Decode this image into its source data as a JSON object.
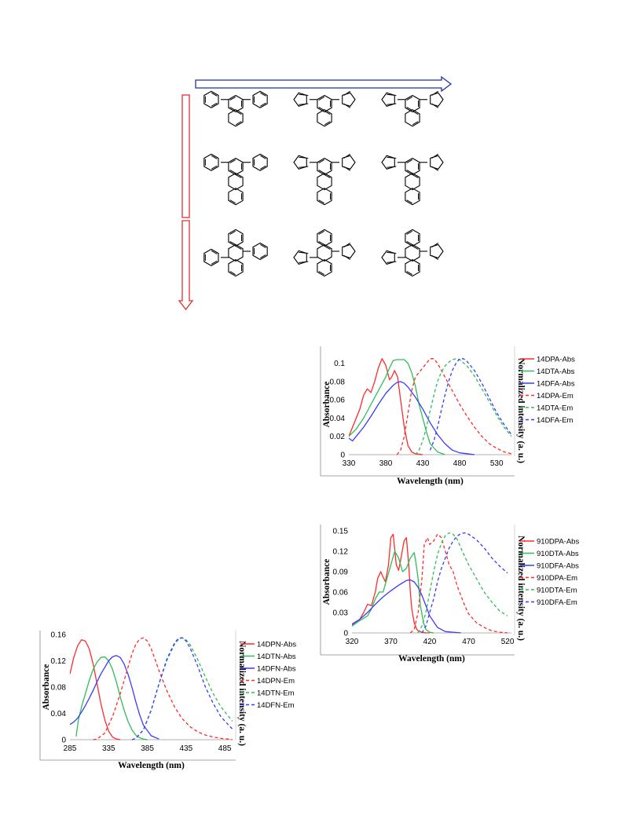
{
  "scheme": {
    "rows": [
      {
        "core": "naphthalene",
        "substituents": [
          "phenyl",
          "thienyl",
          "furyl"
        ]
      },
      {
        "core": "anthracene-1,4",
        "substituents": [
          "phenyl",
          "thienyl",
          "furyl"
        ]
      },
      {
        "core": "anthracene-9,10",
        "substituents": [
          "phenyl",
          "thienyl",
          "furyl"
        ]
      }
    ],
    "arrow_colors": {
      "horizontal": "#1f2fa8",
      "vertical": "#e03030"
    }
  },
  "colors": {
    "red": "#ff2a2a",
    "green": "#2ebd5a",
    "blue": "#3a3aff"
  },
  "chart_data": [
    {
      "id": "anthracene-14",
      "type": "line",
      "xlabel": "Wavelength (nm)",
      "ylabel": "Absorbance",
      "y2label": "Normalized intensity (a. u.)",
      "xlim": [
        330,
        550
      ],
      "ylim": [
        0,
        0.11
      ],
      "xticks": [
        330,
        380,
        430,
        480,
        530
      ],
      "yticks": [
        0,
        0.02,
        0.04,
        0.06,
        0.08,
        0.1
      ],
      "ytick_labels": [
        "0",
        "0.02",
        "0.04",
        "0.06",
        "0.08",
        "0.1"
      ],
      "legend_position": "right",
      "series": [
        {
          "name": "14DPA-Abs",
          "color": "red",
          "dash": false,
          "x": [
            330,
            335,
            340,
            345,
            350,
            355,
            360,
            365,
            370,
            375,
            380,
            385,
            388,
            392,
            396,
            400,
            405,
            410,
            415,
            420,
            430
          ],
          "y": [
            0.02,
            0.03,
            0.04,
            0.05,
            0.065,
            0.072,
            0.068,
            0.08,
            0.095,
            0.105,
            0.098,
            0.082,
            0.085,
            0.092,
            0.085,
            0.06,
            0.03,
            0.01,
            0.003,
            0.001,
            0
          ]
        },
        {
          "name": "14DTA-Abs",
          "color": "green",
          "dash": false,
          "x": [
            330,
            340,
            350,
            360,
            370,
            380,
            385,
            390,
            395,
            400,
            405,
            410,
            415,
            420,
            425,
            430,
            435,
            440,
            450,
            460
          ],
          "y": [
            0.02,
            0.028,
            0.04,
            0.055,
            0.07,
            0.085,
            0.095,
            0.103,
            0.104,
            0.104,
            0.104,
            0.1,
            0.09,
            0.075,
            0.055,
            0.04,
            0.025,
            0.012,
            0.003,
            0
          ]
        },
        {
          "name": "14DFA-Abs",
          "color": "blue",
          "dash": false,
          "x": [
            330,
            335,
            340,
            350,
            360,
            370,
            380,
            390,
            395,
            400,
            405,
            410,
            420,
            430,
            440,
            450,
            460,
            470,
            480,
            490,
            500
          ],
          "y": [
            0.018,
            0.015,
            0.02,
            0.03,
            0.042,
            0.055,
            0.067,
            0.076,
            0.079,
            0.08,
            0.078,
            0.074,
            0.063,
            0.05,
            0.035,
            0.022,
            0.012,
            0.005,
            0.002,
            0.001,
            0
          ]
        },
        {
          "name": "14DPA-Em",
          "color": "red",
          "dash": true,
          "x": [
            395,
            400,
            405,
            410,
            415,
            420,
            425,
            430,
            435,
            440,
            445,
            450,
            460,
            470,
            480,
            490,
            500,
            510,
            520,
            530,
            540,
            550
          ],
          "y": [
            0,
            0.005,
            0.02,
            0.045,
            0.07,
            0.085,
            0.09,
            0.095,
            0.1,
            0.105,
            0.105,
            0.1,
            0.085,
            0.07,
            0.055,
            0.042,
            0.03,
            0.02,
            0.012,
            0.007,
            0.003,
            0.001
          ]
        },
        {
          "name": "14DTA-Em",
          "color": "green",
          "dash": true,
          "x": [
            420,
            425,
            430,
            435,
            440,
            445,
            450,
            455,
            460,
            465,
            470,
            475,
            480,
            490,
            500,
            510,
            520,
            530,
            540,
            550
          ],
          "y": [
            0,
            0.005,
            0.015,
            0.03,
            0.048,
            0.065,
            0.08,
            0.09,
            0.097,
            0.101,
            0.104,
            0.105,
            0.104,
            0.097,
            0.086,
            0.072,
            0.058,
            0.043,
            0.03,
            0.02
          ]
        },
        {
          "name": "14DFA-Em",
          "color": "blue",
          "dash": true,
          "x": [
            440,
            445,
            450,
            455,
            460,
            465,
            470,
            475,
            480,
            485,
            490,
            500,
            510,
            520,
            530,
            540,
            550
          ],
          "y": [
            0.005,
            0.015,
            0.03,
            0.048,
            0.065,
            0.08,
            0.092,
            0.1,
            0.105,
            0.105,
            0.102,
            0.092,
            0.078,
            0.062,
            0.046,
            0.033,
            0.022
          ]
        }
      ]
    },
    {
      "id": "anthracene-910",
      "type": "line",
      "xlabel": "Wavelength (nm)",
      "ylabel": "Absorbance",
      "y2label": "Normalized intensity (a. u.)",
      "xlim": [
        320,
        525
      ],
      "ylim": [
        0,
        0.15
      ],
      "xticks": [
        320,
        370,
        420,
        470,
        520
      ],
      "yticks": [
        0,
        0.03,
        0.06,
        0.09,
        0.12,
        0.15
      ],
      "ytick_labels": [
        "0",
        "0.03",
        "0.06",
        "0.09",
        "0.12",
        "0.15"
      ],
      "legend_position": "right",
      "series": [
        {
          "name": "910DPA-Abs",
          "color": "red",
          "dash": false,
          "x": [
            320,
            330,
            335,
            340,
            345,
            350,
            353,
            357,
            360,
            363,
            367,
            370,
            373,
            377,
            380,
            383,
            387,
            390,
            393,
            395,
            397,
            400,
            403,
            405,
            410,
            415,
            420
          ],
          "y": [
            0.013,
            0.02,
            0.03,
            0.042,
            0.04,
            0.06,
            0.08,
            0.09,
            0.082,
            0.075,
            0.1,
            0.14,
            0.145,
            0.1,
            0.092,
            0.11,
            0.135,
            0.14,
            0.1,
            0.06,
            0.035,
            0.015,
            0.006,
            0.003,
            0.001,
            0,
            0
          ]
        },
        {
          "name": "910DTA-Abs",
          "color": "green",
          "dash": false,
          "x": [
            320,
            330,
            340,
            345,
            350,
            355,
            360,
            365,
            370,
            375,
            380,
            385,
            390,
            395,
            400,
            402,
            405,
            408,
            412,
            415,
            420,
            425
          ],
          "y": [
            0.01,
            0.018,
            0.025,
            0.035,
            0.05,
            0.06,
            0.06,
            0.08,
            0.1,
            0.12,
            0.11,
            0.09,
            0.095,
            0.11,
            0.118,
            0.105,
            0.08,
            0.04,
            0.015,
            0.005,
            0.001,
            0
          ]
        },
        {
          "name": "910DFA-Abs",
          "color": "blue",
          "dash": false,
          "x": [
            320,
            330,
            340,
            350,
            360,
            370,
            380,
            390,
            395,
            400,
            405,
            410,
            415,
            420,
            430,
            440,
            450,
            460
          ],
          "y": [
            0.012,
            0.02,
            0.03,
            0.042,
            0.053,
            0.062,
            0.07,
            0.077,
            0.078,
            0.075,
            0.067,
            0.055,
            0.04,
            0.025,
            0.008,
            0.002,
            0.001,
            0
          ]
        },
        {
          "name": "910DPA-Em",
          "color": "red",
          "dash": true,
          "x": [
            395,
            400,
            405,
            410,
            413,
            417,
            420,
            425,
            430,
            435,
            440,
            445,
            450,
            455,
            460,
            465,
            470,
            480,
            490,
            500,
            510,
            520
          ],
          "y": [
            0,
            0.005,
            0.03,
            0.08,
            0.13,
            0.14,
            0.13,
            0.135,
            0.145,
            0.14,
            0.12,
            0.1,
            0.09,
            0.07,
            0.055,
            0.04,
            0.028,
            0.015,
            0.008,
            0.003,
            0.001,
            0
          ]
        },
        {
          "name": "910DTA-Em",
          "color": "green",
          "dash": true,
          "x": [
            405,
            410,
            415,
            420,
            425,
            430,
            435,
            440,
            445,
            450,
            455,
            460,
            470,
            480,
            490,
            500,
            510,
            520
          ],
          "y": [
            0,
            0.01,
            0.03,
            0.06,
            0.09,
            0.115,
            0.132,
            0.143,
            0.147,
            0.145,
            0.138,
            0.125,
            0.1,
            0.08,
            0.06,
            0.045,
            0.032,
            0.025
          ]
        },
        {
          "name": "910DFA-Em",
          "color": "blue",
          "dash": true,
          "x": [
            410,
            415,
            420,
            425,
            430,
            435,
            440,
            445,
            450,
            455,
            460,
            465,
            470,
            480,
            490,
            500,
            510,
            520
          ],
          "y": [
            0,
            0.01,
            0.03,
            0.05,
            0.075,
            0.095,
            0.11,
            0.125,
            0.135,
            0.142,
            0.146,
            0.147,
            0.145,
            0.137,
            0.125,
            0.11,
            0.098,
            0.088
          ]
        }
      ]
    },
    {
      "id": "naphthalene",
      "type": "line",
      "xlabel": "Wavelength (nm)",
      "ylabel": "Absorbance",
      "y2label": "Normalized intensity (a. u.)",
      "xlim": [
        285,
        495
      ],
      "ylim": [
        0,
        0.16
      ],
      "xticks": [
        285,
        335,
        385,
        435,
        485
      ],
      "yticks": [
        0,
        0.04,
        0.08,
        0.12,
        0.16
      ],
      "ytick_labels": [
        "0",
        "0.04",
        "0.08",
        "0.12",
        "0.16"
      ],
      "legend_position": "right",
      "series": [
        {
          "name": "14DPN-Abs",
          "color": "red",
          "dash": false,
          "x": [
            285,
            290,
            295,
            300,
            305,
            310,
            315,
            320,
            325,
            330,
            335,
            340,
            345,
            350
          ],
          "y": [
            0.1,
            0.125,
            0.143,
            0.152,
            0.15,
            0.138,
            0.115,
            0.085,
            0.055,
            0.03,
            0.013,
            0.004,
            0.001,
            0
          ]
        },
        {
          "name": "14DTN-Abs",
          "color": "green",
          "dash": false,
          "x": [
            293,
            296,
            300,
            305,
            310,
            315,
            320,
            325,
            330,
            335,
            340,
            345,
            350,
            355,
            360,
            365,
            370,
            375,
            380,
            385
          ],
          "y": [
            0.005,
            0.03,
            0.05,
            0.07,
            0.09,
            0.107,
            0.118,
            0.125,
            0.126,
            0.12,
            0.107,
            0.088,
            0.065,
            0.045,
            0.028,
            0.015,
            0.007,
            0.003,
            0.001,
            0
          ]
        },
        {
          "name": "14DFN-Abs",
          "color": "blue",
          "dash": false,
          "x": [
            285,
            290,
            295,
            300,
            305,
            310,
            315,
            320,
            325,
            330,
            335,
            340,
            345,
            350,
            355,
            360,
            365,
            370,
            375,
            380,
            390,
            400
          ],
          "y": [
            0.023,
            0.027,
            0.033,
            0.042,
            0.052,
            0.063,
            0.075,
            0.088,
            0.1,
            0.11,
            0.12,
            0.126,
            0.128,
            0.125,
            0.115,
            0.1,
            0.08,
            0.058,
            0.038,
            0.022,
            0.006,
            0.001
          ]
        },
        {
          "name": "14DPN-Em",
          "color": "red",
          "dash": true,
          "x": [
            315,
            320,
            330,
            340,
            350,
            360,
            365,
            370,
            375,
            380,
            385,
            390,
            395,
            400,
            410,
            420,
            430,
            440,
            450,
            460,
            470,
            480,
            490,
            495
          ],
          "y": [
            0,
            0.001,
            0.01,
            0.035,
            0.07,
            0.11,
            0.13,
            0.145,
            0.153,
            0.155,
            0.15,
            0.138,
            0.122,
            0.105,
            0.075,
            0.05,
            0.032,
            0.02,
            0.012,
            0.007,
            0.004,
            0.002,
            0.001,
            0
          ]
        },
        {
          "name": "14DTN-Em",
          "color": "green",
          "dash": true,
          "x": [
            365,
            370,
            380,
            390,
            400,
            410,
            420,
            425,
            430,
            435,
            440,
            450,
            460,
            470,
            480,
            490,
            495
          ],
          "y": [
            0,
            0.002,
            0.015,
            0.045,
            0.085,
            0.12,
            0.145,
            0.152,
            0.155,
            0.152,
            0.145,
            0.122,
            0.095,
            0.07,
            0.05,
            0.035,
            0.028
          ]
        },
        {
          "name": "14DFN-Em",
          "color": "blue",
          "dash": true,
          "x": [
            365,
            370,
            380,
            390,
            400,
            410,
            420,
            425,
            430,
            435,
            440,
            450,
            460,
            470,
            480,
            490,
            495
          ],
          "y": [
            0,
            0.002,
            0.015,
            0.045,
            0.085,
            0.122,
            0.147,
            0.154,
            0.155,
            0.15,
            0.14,
            0.112,
            0.08,
            0.055,
            0.035,
            0.022,
            0.016
          ]
        }
      ]
    }
  ]
}
